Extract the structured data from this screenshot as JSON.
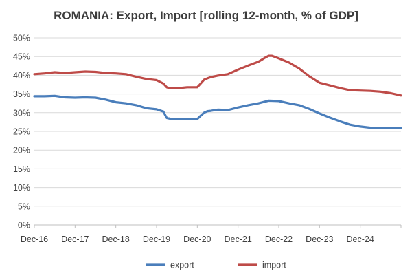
{
  "chart_data": {
    "type": "line",
    "title": "ROMANIA: Export, Import [rolling 12-month, % of GDP]",
    "xlabel": "",
    "ylabel": "",
    "ylim": [
      0,
      50
    ],
    "y_ticks": [
      "0%",
      "5%",
      "10%",
      "15%",
      "20%",
      "25%",
      "30%",
      "35%",
      "40%",
      "45%",
      "50%"
    ],
    "y_tick_values": [
      0,
      5,
      10,
      15,
      20,
      25,
      30,
      35,
      40,
      45,
      50
    ],
    "x_ticks": [
      "Dec-16",
      "Dec-17",
      "Dec-18",
      "Dec-19",
      "Dec-20",
      "Dec-21",
      "Dec-22",
      "Dec-23",
      "Dec-24"
    ],
    "x_tick_positions": [
      0,
      12,
      24,
      36,
      48,
      60,
      72,
      84,
      96
    ],
    "xlim": [
      0,
      108
    ],
    "grid": true,
    "legend_position": "bottom",
    "series": [
      {
        "name": "export",
        "color": "#4a7ebb",
        "x": [
          0,
          3,
          6,
          9,
          12,
          15,
          18,
          21,
          24,
          27,
          30,
          33,
          36,
          38,
          39,
          40,
          42,
          45,
          48,
          49,
          50,
          51,
          52,
          54,
          57,
          60,
          63,
          66,
          69,
          72,
          75,
          78,
          81,
          84,
          87,
          90,
          93,
          96,
          99,
          102,
          105,
          108
        ],
        "values": [
          34.4,
          34.4,
          34.5,
          34.1,
          34.0,
          34.1,
          34.0,
          33.5,
          32.8,
          32.5,
          32.0,
          31.2,
          30.9,
          30.3,
          28.6,
          28.4,
          28.3,
          28.3,
          28.3,
          29.2,
          30.0,
          30.4,
          30.5,
          30.8,
          30.7,
          31.4,
          32.0,
          32.5,
          33.2,
          33.1,
          32.5,
          32.0,
          31.0,
          29.8,
          28.7,
          27.7,
          26.8,
          26.3,
          26.0,
          25.9,
          25.9,
          25.9
        ]
      },
      {
        "name": "import",
        "color": "#be4b48",
        "x": [
          0,
          3,
          6,
          9,
          12,
          15,
          18,
          21,
          24,
          27,
          30,
          33,
          36,
          38,
          39,
          40,
          42,
          45,
          48,
          49,
          50,
          51,
          52,
          54,
          57,
          60,
          63,
          66,
          68,
          69,
          70,
          72,
          75,
          78,
          81,
          84,
          87,
          90,
          93,
          96,
          99,
          102,
          105,
          108
        ],
        "values": [
          40.3,
          40.5,
          40.8,
          40.6,
          40.8,
          41.0,
          40.9,
          40.6,
          40.5,
          40.3,
          39.6,
          39.0,
          38.7,
          37.8,
          36.8,
          36.5,
          36.5,
          36.8,
          36.8,
          37.8,
          38.8,
          39.2,
          39.5,
          39.9,
          40.3,
          41.5,
          42.6,
          43.6,
          44.7,
          45.2,
          45.2,
          44.5,
          43.4,
          41.8,
          39.7,
          38.0,
          37.3,
          36.6,
          36.0,
          35.9,
          35.8,
          35.6,
          35.2,
          34.6
        ]
      }
    ]
  }
}
